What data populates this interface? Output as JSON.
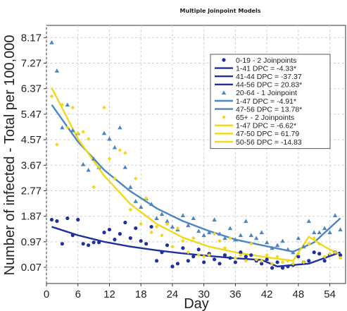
{
  "chart_data": {
    "type": "scatter",
    "title": "Multiple Joinpoint Models",
    "xlabel": "Day",
    "ylabel": "Number of infected - Total per 100,000",
    "xlim": [
      0,
      57
    ],
    "ylim": [
      -0.5,
      8.6
    ],
    "x_ticks": [
      0,
      6,
      12,
      18,
      24,
      30,
      36,
      42,
      48,
      54
    ],
    "y_ticks": [
      0.07,
      0.97,
      1.87,
      2.77,
      3.67,
      4.57,
      5.47,
      6.37,
      7.27,
      8.17
    ],
    "grid": true,
    "legend_position": "top-right",
    "colors": {
      "0-19": "#1f2f9e",
      "20-64": "#4a86c0",
      "65+": "#f2d81c"
    },
    "series": [
      {
        "name": "0-19 - 2 Joinpoints",
        "marker": "circle",
        "color": "#1f2f9e",
        "points": [
          [
            1,
            1.75
          ],
          [
            2,
            1.7
          ],
          [
            3,
            0.9
          ],
          [
            4,
            1.8
          ],
          [
            5,
            1.2
          ],
          [
            6,
            1.75
          ],
          [
            7,
            0.9
          ],
          [
            8,
            0.85
          ],
          [
            9,
            0.95
          ],
          [
            10,
            0.95
          ],
          [
            11,
            1.3
          ],
          [
            12,
            1.4
          ],
          [
            13,
            1.05
          ],
          [
            14,
            1.25
          ],
          [
            15,
            1.65
          ],
          [
            16,
            1.1
          ],
          [
            17,
            1.45
          ],
          [
            18,
            1.0
          ],
          [
            19,
            0.9
          ],
          [
            20,
            1.5
          ],
          [
            21,
            0.3
          ],
          [
            22,
            0.6
          ],
          [
            23,
            0.85
          ],
          [
            24,
            0.1
          ],
          [
            25,
            0.2
          ],
          [
            26,
            0.75
          ],
          [
            27,
            0.3
          ],
          [
            28,
            0.45
          ],
          [
            29,
            0.7
          ],
          [
            30,
            0.25
          ],
          [
            31,
            0.55
          ],
          [
            32,
            0.35
          ],
          [
            33,
            0.2
          ],
          [
            34,
            0.5
          ],
          [
            35,
            0.4
          ],
          [
            36,
            0.25
          ],
          [
            37,
            0.6
          ],
          [
            38,
            0.45
          ],
          [
            39,
            0.5
          ],
          [
            40,
            0.3
          ],
          [
            41,
            0.2
          ],
          [
            42,
            0.35
          ],
          [
            43,
            0.05
          ],
          [
            44,
            0.25
          ],
          [
            45,
            0.05
          ],
          [
            46,
            0.1
          ],
          [
            47,
            0.15
          ],
          [
            48,
            0.45
          ],
          [
            49,
            0.25
          ],
          [
            50,
            0.3
          ],
          [
            51,
            0.6
          ],
          [
            52,
            0.55
          ],
          [
            53,
            0.3
          ],
          [
            54,
            0.5
          ],
          [
            55,
            0.6
          ],
          [
            56,
            0.5
          ]
        ]
      },
      {
        "name": "20-64 - 1 Joinpoint",
        "marker": "triangle",
        "color": "#4a86c0",
        "points": [
          [
            1,
            8.0
          ],
          [
            2,
            7.0
          ],
          [
            3,
            5.0
          ],
          [
            4,
            5.8
          ],
          [
            5,
            4.9
          ],
          [
            6,
            4.8
          ],
          [
            7,
            3.7
          ],
          [
            8,
            3.5
          ],
          [
            9,
            3.9
          ],
          [
            10,
            3.6
          ],
          [
            11,
            4.8
          ],
          [
            12,
            4.6
          ],
          [
            13,
            4.3
          ],
          [
            14,
            5.0
          ],
          [
            15,
            3.6
          ],
          [
            16,
            2.9
          ],
          [
            17,
            2.4
          ],
          [
            18,
            2.2
          ],
          [
            19,
            2.5
          ],
          [
            20,
            2.3
          ],
          [
            21,
            1.8
          ],
          [
            22,
            1.95
          ],
          [
            23,
            1.7
          ],
          [
            24,
            1.5
          ],
          [
            25,
            1.4
          ],
          [
            26,
            1.9
          ],
          [
            27,
            1.55
          ],
          [
            28,
            1.8
          ],
          [
            29,
            1.35
          ],
          [
            30,
            1.2
          ],
          [
            31,
            1.3
          ],
          [
            32,
            1.75
          ],
          [
            33,
            1.25
          ],
          [
            34,
            1.1
          ],
          [
            35,
            1.45
          ],
          [
            36,
            1.05
          ],
          [
            37,
            1.2
          ],
          [
            38,
            1.7
          ],
          [
            39,
            1.2
          ],
          [
            40,
            1.1
          ],
          [
            41,
            1.3
          ],
          [
            42,
            0.95
          ],
          [
            43,
            0.75
          ],
          [
            44,
            0.85
          ],
          [
            45,
            1.0
          ],
          [
            46,
            0.7
          ],
          [
            47,
            0.6
          ],
          [
            48,
            1.1
          ],
          [
            49,
            0.8
          ],
          [
            50,
            1.7
          ],
          [
            51,
            1.3
          ],
          [
            52,
            1.3
          ],
          [
            53,
            1.45
          ],
          [
            54,
            1.3
          ],
          [
            55,
            1.9
          ],
          [
            56,
            1.4
          ]
        ]
      },
      {
        "name": "65+ - 2 Joinpoints",
        "marker": "diamond",
        "color": "#f2d81c",
        "points": [
          [
            1,
            6.1
          ],
          [
            2,
            4.4
          ],
          [
            3,
            5.8
          ],
          [
            4,
            5.0
          ],
          [
            5,
            5.7
          ],
          [
            6,
            4.8
          ],
          [
            7,
            4.85
          ],
          [
            8,
            4.6
          ],
          [
            9,
            2.9
          ],
          [
            10,
            3.6
          ],
          [
            11,
            5.7
          ],
          [
            12,
            3.9
          ],
          [
            13,
            3.2
          ],
          [
            14,
            4.2
          ],
          [
            15,
            4.1
          ],
          [
            16,
            2.1
          ],
          [
            17,
            3.2
          ],
          [
            18,
            1.6
          ],
          [
            19,
            2.5
          ],
          [
            20,
            1.3
          ],
          [
            21,
            1.5
          ],
          [
            22,
            1.2
          ],
          [
            23,
            1.6
          ],
          [
            24,
            0.8
          ],
          [
            25,
            1.45
          ],
          [
            26,
            1.0
          ],
          [
            27,
            0.6
          ],
          [
            28,
            1.1
          ],
          [
            29,
            0.5
          ],
          [
            30,
            0.45
          ],
          [
            31,
            0.5
          ],
          [
            32,
            1.25
          ],
          [
            33,
            1.0
          ],
          [
            34,
            0.75
          ],
          [
            35,
            1.1
          ],
          [
            36,
            0.4
          ],
          [
            37,
            0.5
          ],
          [
            38,
            0.3
          ],
          [
            39,
            0.9
          ],
          [
            40,
            0.35
          ],
          [
            41,
            0.3
          ],
          [
            42,
            0.5
          ],
          [
            43,
            0.2
          ],
          [
            44,
            0.45
          ],
          [
            45,
            0.25
          ],
          [
            46,
            0.3
          ],
          [
            47,
            0.2
          ],
          [
            48,
            0.55
          ],
          [
            49,
            0.25
          ],
          [
            50,
            0.9
          ],
          [
            51,
            1.1
          ],
          [
            52,
            0.9
          ],
          [
            53,
            0.45
          ],
          [
            54,
            0.55
          ],
          [
            55,
            0.6
          ],
          [
            56,
            0.4
          ]
        ]
      }
    ],
    "fit_lines": [
      {
        "series": "0-19",
        "color": "#1f2f9e",
        "segments": [
          {
            "x": [
              1,
              41
            ],
            "dpc": -4.33
          },
          {
            "x": [
              41,
              44
            ],
            "dpc": -37.37
          },
          {
            "x": [
              44,
              56
            ],
            "dpc": 20.83
          }
        ],
        "points": [
          [
            1,
            1.5
          ],
          [
            6,
            1.2
          ],
          [
            11,
            0.97
          ],
          [
            16,
            0.8
          ],
          [
            21,
            0.67
          ],
          [
            26,
            0.56
          ],
          [
            31,
            0.47
          ],
          [
            36,
            0.39
          ],
          [
            41,
            0.33
          ],
          [
            44,
            0.1
          ],
          [
            50,
            0.2
          ],
          [
            56,
            0.6
          ]
        ]
      },
      {
        "series": "20-64",
        "color": "#4a86c0",
        "segments": [
          {
            "x": [
              1,
              47
            ],
            "dpc": -4.91
          },
          {
            "x": [
              47,
              56
            ],
            "dpc": 13.78
          }
        ],
        "points": [
          [
            1,
            5.8
          ],
          [
            6,
            4.5
          ],
          [
            11,
            3.5
          ],
          [
            16,
            2.75
          ],
          [
            21,
            2.15
          ],
          [
            26,
            1.7
          ],
          [
            31,
            1.35
          ],
          [
            36,
            1.05
          ],
          [
            41,
            0.85
          ],
          [
            47,
            0.62
          ],
          [
            51,
            0.95
          ],
          [
            56,
            1.8
          ]
        ]
      },
      {
        "series": "65+",
        "color": "#f2d81c",
        "segments": [
          {
            "x": [
              1,
              47
            ],
            "dpc": -6.62
          },
          {
            "x": [
              47,
              50
            ],
            "dpc": 61.79
          },
          {
            "x": [
              50,
              56
            ],
            "dpc": -14.83
          }
        ],
        "points": [
          [
            1,
            6.4
          ],
          [
            6,
            4.6
          ],
          [
            11,
            3.3
          ],
          [
            16,
            2.3
          ],
          [
            21,
            1.6
          ],
          [
            26,
            1.12
          ],
          [
            31,
            0.8
          ],
          [
            36,
            0.6
          ],
          [
            41,
            0.45
          ],
          [
            47,
            0.3
          ],
          [
            50,
            1.15
          ],
          [
            53,
            0.8
          ],
          [
            56,
            0.5
          ]
        ]
      }
    ],
    "legend": [
      {
        "text": "0-19 - 2 Joinpoints",
        "kind": "circle",
        "color": "#1f2f9e"
      },
      {
        "text": "1-41 DPC  = -4.33*",
        "kind": "line",
        "color": "#1f2f9e"
      },
      {
        "text": "41-44 DPC  = -37.37",
        "kind": "line",
        "color": "#1f2f9e"
      },
      {
        "text": "44-56 DPC  = 20.83*",
        "kind": "line",
        "color": "#1f2f9e"
      },
      {
        "text": "20-64 - 1 Joinpoint",
        "kind": "triangle",
        "color": "#4a86c0"
      },
      {
        "text": "1-47 DPC  = -4.91*",
        "kind": "line",
        "color": "#4a86c0"
      },
      {
        "text": "47-56 DPC  = 13.78*",
        "kind": "line",
        "color": "#4a86c0"
      },
      {
        "text": "65+ - 2 Joinpoints",
        "kind": "diamond",
        "color": "#f2d81c"
      },
      {
        "text": "1-47 DPC  = -6.62*",
        "kind": "line",
        "color": "#f2d81c"
      },
      {
        "text": "47-50 DPC  =  61.79",
        "kind": "line",
        "color": "#f2d81c"
      },
      {
        "text": "50-56 DPC  = -14.83",
        "kind": "line",
        "color": "#f2d81c"
      }
    ]
  }
}
